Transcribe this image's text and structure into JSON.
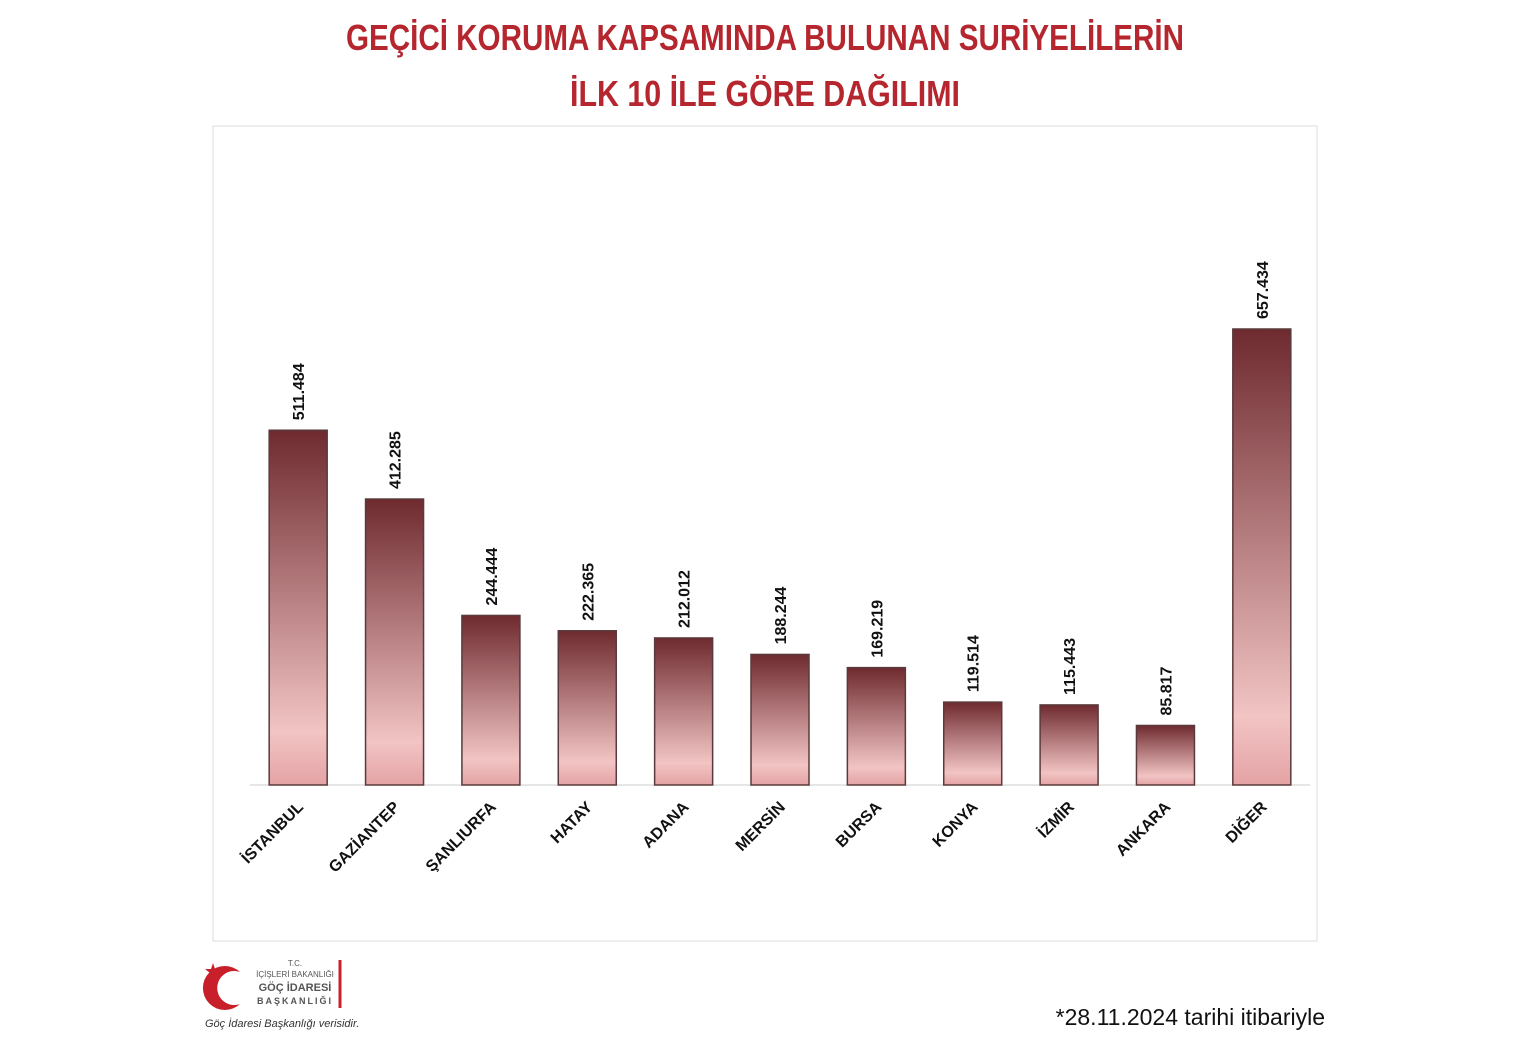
{
  "chart_data": {
    "type": "bar",
    "title": [
      "GEÇİCİ KORUMA KAPSAMINDA BULUNAN SURİYELİLERİN",
      "İLK 10 İLE GÖRE DAĞILIMI"
    ],
    "categories": [
      "İSTANBUL",
      "GAZİANTEP",
      "ŞANLIURFA",
      "HATAY",
      "ADANA",
      "MERSİN",
      "BURSA",
      "KONYA",
      "İZMİR",
      "ANKARA",
      "DİĞER"
    ],
    "values": [
      511484,
      412285,
      244444,
      222365,
      212012,
      188244,
      169219,
      119514,
      115443,
      85817,
      657434
    ],
    "value_labels": [
      "511.484",
      "412.285",
      "244.444",
      "222.365",
      "212.012",
      "188.244",
      "169.219",
      "119.514",
      "115.443",
      "85.817",
      "657.434"
    ],
    "color": "#6e2a2f",
    "note": "*28.11.2024 tarihi itibariyle"
  },
  "logo": {
    "lines": [
      "T.C.",
      "İÇİŞLERİ BAKANLIĞI",
      "GÖÇ İDARESİ",
      "BAŞKANLIĞI"
    ],
    "source": "Göç İdaresi Başkanlığı verisidir."
  }
}
